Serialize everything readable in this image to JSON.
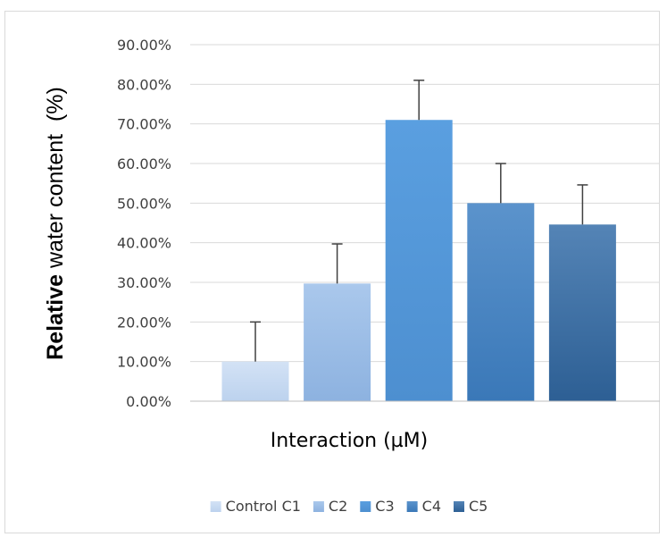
{
  "chart_data": {
    "type": "bar",
    "categories": [
      "Control C1",
      "C2",
      "C3",
      "C4",
      "C5"
    ],
    "values": [
      10.0,
      29.7,
      71.0,
      50.0,
      44.6
    ],
    "errors": [
      10.0,
      10.0,
      10.0,
      10.0,
      10.0
    ],
    "xlabel": "Interaction (µM)",
    "ylabel_bold": "Relative",
    "ylabel_rest": " water content  (%)",
    "ylim": [
      0,
      90
    ],
    "yticks": [
      "0.00%",
      "10.00%",
      "20.00%",
      "30.00%",
      "40.00%",
      "50.00%",
      "60.00%",
      "70.00%",
      "80.00%",
      "90.00%"
    ],
    "grid": true,
    "legend_position": "bottom",
    "colors": [
      "#c5d8f1",
      "#9dbde6",
      "#5b9bd5",
      "#3f7fbf",
      "#2f5f92"
    ]
  }
}
